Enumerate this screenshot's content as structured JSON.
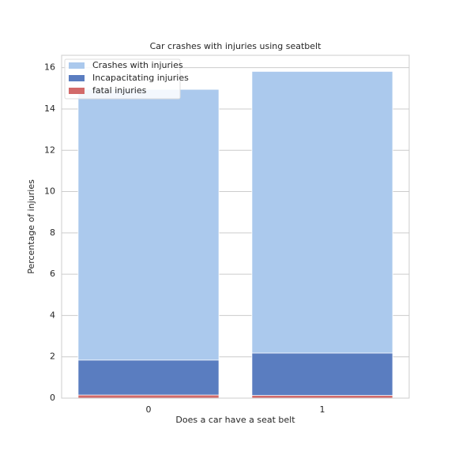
{
  "chart_data": {
    "type": "bar",
    "title": "Car crashes with injuries using seatbelt",
    "x_label": "Does a car have a seat belt",
    "y_label": "Percentage of injuries",
    "categories": [
      "0",
      "1"
    ],
    "series": [
      {
        "name": "Crashes with injuries",
        "color": "#abc9ed",
        "values": [
          14.95,
          15.82
        ]
      },
      {
        "name": "Incapacitating injuries",
        "color": "#5a7dc0",
        "values": [
          1.84,
          2.18
        ]
      },
      {
        "name": "fatal injuries",
        "color": "#d26a6a",
        "values": [
          0.15,
          0.13
        ]
      }
    ],
    "ylim": [
      0,
      16.6
    ],
    "yticks": [
      0,
      2,
      4,
      6,
      8,
      10,
      12,
      14,
      16
    ],
    "grid": true,
    "legend": "upper left"
  }
}
